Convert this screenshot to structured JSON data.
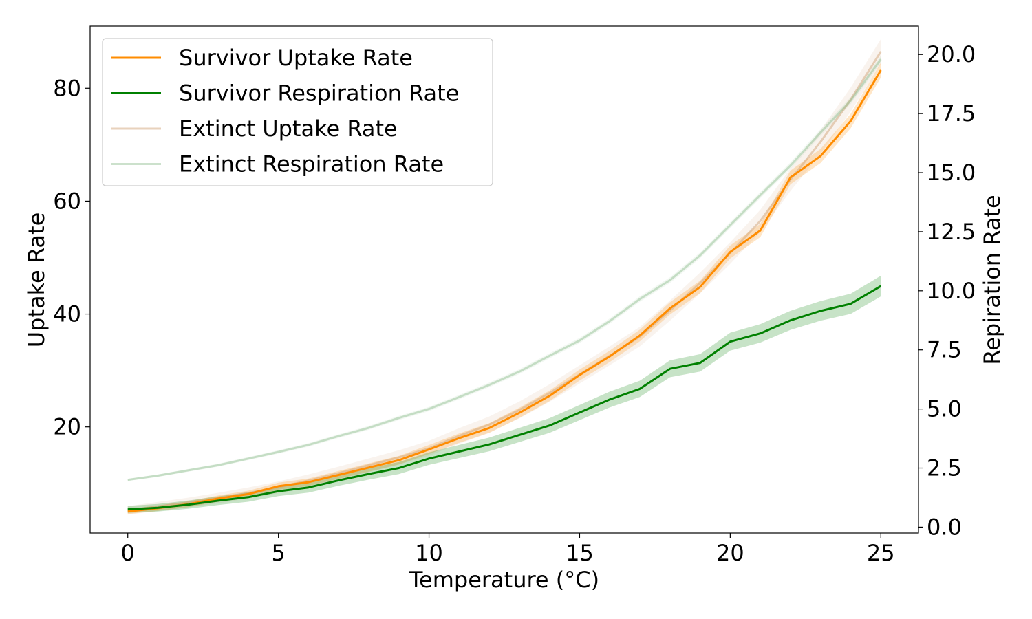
{
  "chart_data": {
    "type": "line",
    "xlabel": "Temperature (°C)",
    "ylabel_left": "Uptake Rate",
    "ylabel_right": "Repiration Rate",
    "xlim": [
      -1.25,
      26.25
    ],
    "ylim_left": [
      1.2,
      91.0
    ],
    "ylim_right": [
      -0.25,
      21.2
    ],
    "xticks": [
      0,
      5,
      10,
      15,
      20,
      25
    ],
    "yticks_left": [
      20,
      40,
      60,
      80
    ],
    "yticks_right": [
      0.0,
      2.5,
      5.0,
      7.5,
      10.0,
      12.5,
      15.0,
      17.5,
      20.0
    ],
    "grid": false,
    "legend_position": "upper-left",
    "x": [
      0,
      1,
      2,
      3,
      4,
      5,
      6,
      7,
      8,
      9,
      10,
      11,
      12,
      13,
      14,
      15,
      16,
      17,
      18,
      19,
      20,
      21,
      22,
      23,
      24,
      25
    ],
    "series": [
      {
        "name": "Survivor Uptake Rate",
        "axis": "left",
        "color": "#ff8c00",
        "alpha": 1.0,
        "values": [
          5.0,
          5.6,
          6.3,
          7.3,
          8.1,
          9.5,
          10.2,
          11.5,
          12.8,
          14.1,
          16.0,
          18.0,
          19.8,
          22.5,
          25.5,
          29.2,
          32.5,
          36.2,
          41.0,
          44.8,
          51.0,
          54.8,
          64.2,
          68.0,
          74.2,
          83.2
        ],
        "band": 0.9
      },
      {
        "name": "Survivor Respiration Rate",
        "axis": "right",
        "color": "#008000",
        "alpha": 1.0,
        "values": [
          0.75,
          0.82,
          0.95,
          1.12,
          1.27,
          1.52,
          1.68,
          1.98,
          2.25,
          2.5,
          2.9,
          3.2,
          3.5,
          3.9,
          4.3,
          4.85,
          5.4,
          5.85,
          6.7,
          6.95,
          7.85,
          8.2,
          8.75,
          9.15,
          9.45,
          10.2
        ],
        "band": 0.3
      },
      {
        "name": "Extinct Uptake Rate",
        "axis": "left",
        "color": "#d2a679",
        "alpha": 0.5,
        "values": [
          5.2,
          5.9,
          6.6,
          7.4,
          8.3,
          9.3,
          10.5,
          11.8,
          13.2,
          14.6,
          16.2,
          18.4,
          20.4,
          23.0,
          26.0,
          29.3,
          32.6,
          36.0,
          40.6,
          45.5,
          50.8,
          56.5,
          63.8,
          70.5,
          78.0,
          86.5
        ],
        "band": 1.5
      },
      {
        "name": "Extinct Respiration Rate",
        "axis": "right",
        "color": "#8fbc8f",
        "alpha": 0.45,
        "values": [
          2.0,
          2.18,
          2.4,
          2.62,
          2.9,
          3.18,
          3.48,
          3.85,
          4.2,
          4.62,
          5.0,
          5.5,
          6.02,
          6.58,
          7.25,
          7.9,
          8.72,
          9.65,
          10.45,
          11.5,
          12.78,
          14.05,
          15.3,
          16.7,
          18.05,
          19.8
        ],
        "band": 0.1
      }
    ]
  }
}
